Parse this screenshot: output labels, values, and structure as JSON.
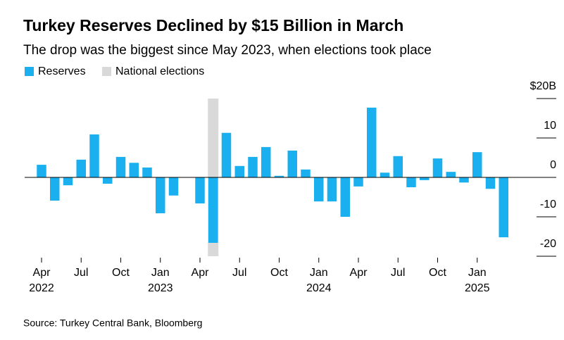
{
  "chart_data": {
    "type": "bar",
    "title": "Turkey Reserves Declined by $15 Billion in March",
    "subtitle": "The drop was the biggest since May 2023, when elections took place",
    "source": "Source: Turkey Central Bank, Bloomberg",
    "categories": [
      "Apr",
      null,
      null,
      "Jul",
      null,
      null,
      "Oct",
      null,
      null,
      "Jan",
      null,
      null,
      "Apr",
      null,
      null,
      "Jul",
      null,
      null,
      "Oct",
      null,
      null,
      "Jan",
      null,
      null,
      "Apr",
      null,
      null,
      "Jul",
      null,
      null,
      "Oct",
      null,
      null,
      "Jan",
      null,
      null
    ],
    "years": [
      "2022",
      null,
      null,
      null,
      null,
      null,
      null,
      null,
      null,
      "2023",
      null,
      null,
      null,
      null,
      null,
      null,
      null,
      null,
      null,
      null,
      null,
      "2024",
      null,
      null,
      null,
      null,
      null,
      null,
      null,
      null,
      null,
      null,
      null,
      "2025",
      null,
      null
    ],
    "series": [
      {
        "name": "Reserves",
        "color": "#1ab0f0",
        "values": [
          3.2,
          -5.9,
          -2,
          4.5,
          10.9,
          -1.6,
          5.2,
          3.7,
          2.5,
          -9.1,
          -4.6,
          0,
          -6.6,
          -16.6,
          11.3,
          2.9,
          5.2,
          7.7,
          0.4,
          6.8,
          2,
          -6.1,
          -6.1,
          -10,
          -2.3,
          17.7,
          1.2,
          5.4,
          -2.5,
          -0.7,
          4.8,
          1.4,
          -1.3,
          6.4,
          -2.9,
          -15.2
        ]
      }
    ],
    "highlight": {
      "name": "National elections",
      "color": "#d9d9d9",
      "index": 13
    },
    "ylim": [
      -20,
      20
    ],
    "yticks": [
      {
        "value": 20,
        "label": "$20B"
      },
      10,
      0,
      -10,
      -20
    ]
  }
}
